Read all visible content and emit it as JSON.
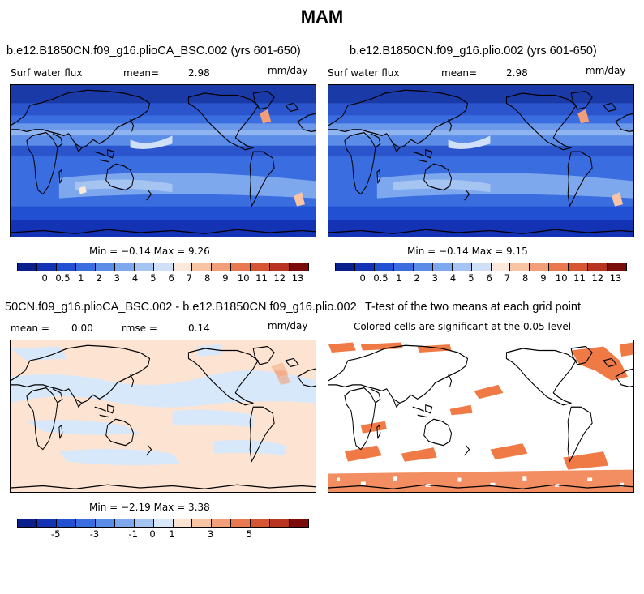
{
  "title": "MAM",
  "colors": {
    "ocean_base": "#3f6ee3",
    "land_base": "#3a63d8",
    "diff_neg": "#d8e8fb",
    "diff_pos": "#fde3d1",
    "signif": "#f07a45",
    "coast": "#000000"
  },
  "panels": [
    {
      "title": "b.e12.B1850CN.f09_g16.plioCA_BSC.002 (yrs 601-650)",
      "left_label": "Surf water flux",
      "mean_label": "mean=",
      "mean_value": "2.98",
      "units": "mm/day",
      "stats": "Min =  −0.14 Max =    9.26"
    },
    {
      "title": "b.e12.B1850CN.f09_g16.plio.002 (yrs 601-650)",
      "left_label": "Surf water flux",
      "mean_label": "mean=",
      "mean_value": "2.98",
      "units": "mm/day",
      "stats": "Min =  −0.14 Max =    9.15"
    },
    {
      "title": "50CN.f09_g16.plioCA_BSC.002 - b.e12.B1850CN.f09_g16.plio.002",
      "left_label": "mean =",
      "mean_value": "0.00",
      "rmse_label": "rmse =",
      "rmse_value": "0.14",
      "units": "mm/day",
      "stats": "Min =  −2.19 Max =    3.38"
    },
    {
      "title": "T-test of the two means at each grid point",
      "subtitle": "Colored cells are significant at the 0.05 level"
    }
  ],
  "chart_data": [
    {
      "type": "heatmap",
      "title": "b.e12.B1850CN.f09_g16.plioCA_BSC.002 (yrs 601-650)",
      "variable": "Surf water flux",
      "units": "mm/day",
      "mean": 2.98,
      "min": -0.14,
      "max": 9.26,
      "colorbar_levels": [
        0,
        0.5,
        1,
        2,
        3,
        4,
        5,
        6,
        7,
        8,
        9,
        10,
        11,
        12,
        13
      ],
      "colorbar_tick_labels": [
        "0",
        "0.5",
        "1",
        "2",
        "3",
        "4",
        "5",
        "6",
        "7",
        "8",
        "9",
        "10",
        "11",
        "12",
        "13"
      ],
      "colorbar_colors": [
        "#0a1e8c",
        "#1432b4",
        "#2150d2",
        "#3a6ee0",
        "#5a8ce8",
        "#7ea8ee",
        "#a6c4f2",
        "#cfe0f8",
        "#fbe9dc",
        "#f8c4a4",
        "#f29e78",
        "#ea7850",
        "#d85534",
        "#b83420",
        "#7a0c0c"
      ]
    },
    {
      "type": "heatmap",
      "title": "b.e12.B1850CN.f09_g16.plio.002 (yrs 601-650)",
      "variable": "Surf water flux",
      "units": "mm/day",
      "mean": 2.98,
      "min": -0.14,
      "max": 9.15,
      "colorbar_levels": [
        0,
        0.5,
        1,
        2,
        3,
        4,
        5,
        6,
        7,
        8,
        9,
        10,
        11,
        12,
        13
      ],
      "colorbar_tick_labels": [
        "0",
        "0.5",
        "1",
        "2",
        "3",
        "4",
        "5",
        "6",
        "7",
        "8",
        "9",
        "10",
        "11",
        "12",
        "13"
      ],
      "colorbar_colors": [
        "#0a1e8c",
        "#1432b4",
        "#2150d2",
        "#3a6ee0",
        "#5a8ce8",
        "#7ea8ee",
        "#a6c4f2",
        "#cfe0f8",
        "#fbe9dc",
        "#f8c4a4",
        "#f29e78",
        "#ea7850",
        "#d85534",
        "#b83420",
        "#7a0c0c"
      ]
    },
    {
      "type": "heatmap",
      "title": "50CN.f09_g16.plioCA_BSC.002 - b.e12.B1850CN.f09_g16.plio.002",
      "units": "mm/day",
      "mean": 0.0,
      "rmse": 0.14,
      "min": -2.19,
      "max": 3.38,
      "colorbar_tick_labels": [
        "-5",
        "-3",
        "-1",
        "0",
        "1",
        "3",
        "5"
      ],
      "colorbar_colors": [
        "#0a1e8c",
        "#1432b4",
        "#2150d2",
        "#3a6ee0",
        "#5a8ce8",
        "#7ea8ee",
        "#a6c4f2",
        "#d8e8fb",
        "#fde3d1",
        "#f8c4a4",
        "#f29e78",
        "#ea7850",
        "#d85534",
        "#b83420",
        "#7a0c0c"
      ]
    },
    {
      "type": "heatmap",
      "title": "T-test of the two means at each grid point",
      "subtitle": "Colored cells are significant at the 0.05 level",
      "significance_level": 0.05
    }
  ]
}
